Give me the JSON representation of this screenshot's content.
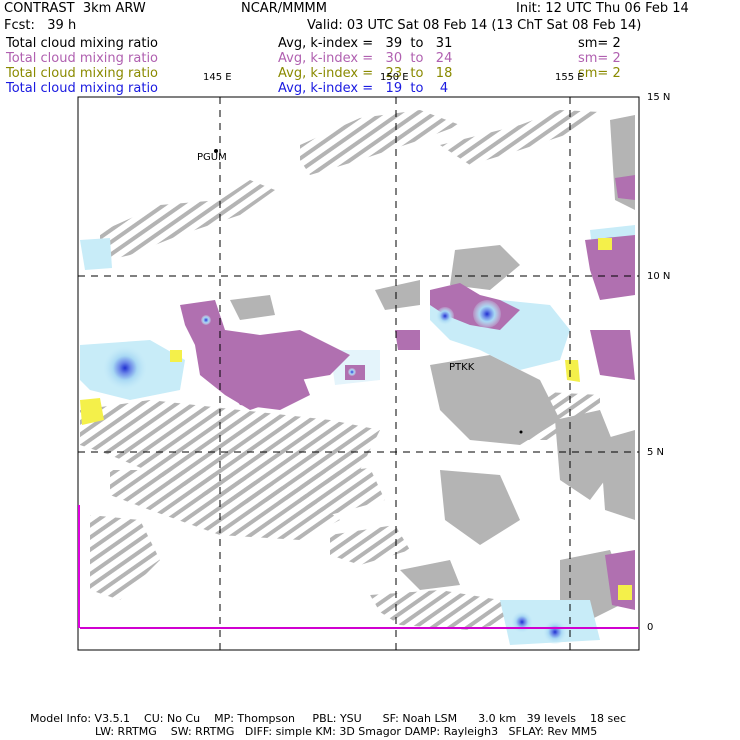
{
  "header": {
    "model": "CONTRAST  3km ARW",
    "org": "NCAR/MMMM",
    "init": "Init: 12 UTC Thu 06 Feb 14",
    "fcst": "Fcst:   39 h",
    "valid": "Valid: 03 UTC Sat 08 Feb 14 (13 ChT Sat 08 Feb 14)"
  },
  "legend": [
    {
      "field": "Total cloud mixing ratio",
      "range": "Avg, k-index =   39  to   31",
      "sm": "sm= 2",
      "color": "#000000"
    },
    {
      "field": "Total cloud mixing ratio",
      "range": "Avg, k-index =   30  to   24",
      "sm": "sm= 2",
      "color": "#b060b0"
    },
    {
      "field": "Total cloud mixing ratio",
      "range": "Avg, k-index =   23  to   18",
      "sm": "sm= 2",
      "color": "#8a8a00"
    },
    {
      "field": "Total cloud mixing ratio",
      "range": "Avg, k-index =   19  to    4",
      "sm": "",
      "color": "#1a1ae0"
    }
  ],
  "map": {
    "lon_labels": [
      "145 E",
      "150 E",
      "155 E"
    ],
    "lat_labels": [
      "15 N",
      "10 N",
      "5 N",
      "0"
    ],
    "stations": [
      "PGUM",
      "PTKK"
    ]
  },
  "footer": {
    "line1": "Model Info: V3.5.1    CU: No Cu    MP: Thompson     PBL: YSU      SF: Noah LSM      3.0 km   39 levels    18 sec",
    "line2": "LW: RRTMG    SW: RRTMG   DIFF: simple KM: 3D Smagor DAMP: Rayleigh3   SFLAY: Rev MM5"
  },
  "colors": {
    "gray_cloud": "#b4b4b4",
    "purple_cloud": "#b070b0",
    "yellow_cloud": "#f4f04a",
    "lightblue_cloud": "#c8ecf8",
    "blue_core": "#2030d0",
    "magenta_axis": "#e000e0"
  }
}
